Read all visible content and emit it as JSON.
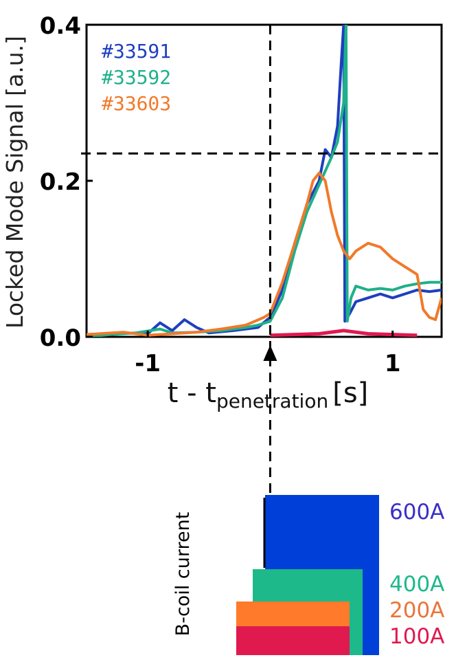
{
  "chart_data": [
    {
      "type": "line",
      "title": "",
      "ylabel": "Locked Mode Signal [a.u.]",
      "xlabel": {
        "main": "t - t",
        "subscript": "penetration",
        "unit": "[s]"
      },
      "xlim": [
        -1.5,
        1.4
      ],
      "ylim": [
        0,
        0.4
      ],
      "xticks": [
        -1,
        1
      ],
      "xtick_labels": [
        "-1",
        "1"
      ],
      "yticks": [
        0,
        0.2,
        0.4
      ],
      "ytick_labels": [
        "0.0",
        "0.2",
        "0.4"
      ],
      "grid": false,
      "legend_placement": "top-left",
      "threshold_y": 0.235,
      "penetration_x": 0,
      "series": [
        {
          "name": "#33591",
          "color": "#1f3fbf",
          "points": [
            [
              -1.5,
              0.0
            ],
            [
              -1.2,
              0.005
            ],
            [
              -1.0,
              0.004
            ],
            [
              -0.9,
              0.018
            ],
            [
              -0.8,
              0.008
            ],
            [
              -0.7,
              0.022
            ],
            [
              -0.6,
              0.012
            ],
            [
              -0.5,
              0.005
            ],
            [
              -0.3,
              0.008
            ],
            [
              -0.1,
              0.012
            ],
            [
              0.0,
              0.025
            ],
            [
              0.1,
              0.06
            ],
            [
              0.2,
              0.12
            ],
            [
              0.3,
              0.17
            ],
            [
              0.4,
              0.2
            ],
            [
              0.45,
              0.24
            ],
            [
              0.5,
              0.23
            ],
            [
              0.55,
              0.27
            ],
            [
              0.58,
              0.35
            ],
            [
              0.6,
              0.4
            ],
            [
              0.61,
              0.02
            ],
            [
              0.65,
              0.03
            ],
            [
              0.7,
              0.045
            ],
            [
              0.8,
              0.05
            ],
            [
              0.9,
              0.055
            ],
            [
              1.0,
              0.05
            ],
            [
              1.1,
              0.055
            ],
            [
              1.2,
              0.06
            ],
            [
              1.3,
              0.058
            ],
            [
              1.4,
              0.06
            ]
          ]
        },
        {
          "name": "#33592",
          "color": "#1fb08a",
          "points": [
            [
              -1.5,
              0.0
            ],
            [
              -1.3,
              0.003
            ],
            [
              -1.1,
              0.005
            ],
            [
              -0.9,
              0.01
            ],
            [
              -0.8,
              0.005
            ],
            [
              -0.6,
              0.006
            ],
            [
              -0.4,
              0.008
            ],
            [
              -0.2,
              0.012
            ],
            [
              -0.1,
              0.015
            ],
            [
              0.0,
              0.02
            ],
            [
              0.1,
              0.05
            ],
            [
              0.2,
              0.11
            ],
            [
              0.3,
              0.16
            ],
            [
              0.4,
              0.195
            ],
            [
              0.5,
              0.23
            ],
            [
              0.55,
              0.25
            ],
            [
              0.6,
              0.3
            ],
            [
              0.62,
              0.4
            ],
            [
              0.63,
              0.02
            ],
            [
              0.66,
              0.05
            ],
            [
              0.7,
              0.065
            ],
            [
              0.8,
              0.06
            ],
            [
              0.9,
              0.062
            ],
            [
              1.0,
              0.06
            ],
            [
              1.1,
              0.065
            ],
            [
              1.2,
              0.068
            ],
            [
              1.3,
              0.07
            ],
            [
              1.4,
              0.07
            ]
          ]
        },
        {
          "name": "#33603",
          "color": "#f07a2a",
          "points": [
            [
              -1.5,
              0.003
            ],
            [
              -1.2,
              0.006
            ],
            [
              -1.0,
              0.002
            ],
            [
              -0.8,
              0.004
            ],
            [
              -0.6,
              0.006
            ],
            [
              -0.4,
              0.01
            ],
            [
              -0.2,
              0.015
            ],
            [
              -0.05,
              0.025
            ],
            [
              0.0,
              0.03
            ],
            [
              0.1,
              0.07
            ],
            [
              0.2,
              0.12
            ],
            [
              0.3,
              0.17
            ],
            [
              0.35,
              0.2
            ],
            [
              0.4,
              0.21
            ],
            [
              0.45,
              0.2
            ],
            [
              0.5,
              0.16
            ],
            [
              0.55,
              0.13
            ],
            [
              0.6,
              0.11
            ],
            [
              0.65,
              0.1
            ],
            [
              0.7,
              0.11
            ],
            [
              0.8,
              0.12
            ],
            [
              0.9,
              0.115
            ],
            [
              1.0,
              0.1
            ],
            [
              1.1,
              0.09
            ],
            [
              1.2,
              0.08
            ],
            [
              1.25,
              0.035
            ],
            [
              1.3,
              0.025
            ],
            [
              1.35,
              0.022
            ],
            [
              1.4,
              0.05
            ]
          ]
        },
        {
          "name": "",
          "color": "#e0194f",
          "points": [
            [
              0.0,
              0.002
            ],
            [
              0.2,
              0.003
            ],
            [
              0.4,
              0.004
            ],
            [
              0.6,
              0.008
            ],
            [
              0.8,
              0.004
            ],
            [
              1.0,
              0.003
            ],
            [
              1.2,
              0.002
            ]
          ]
        }
      ]
    },
    {
      "type": "bar",
      "title": "",
      "ylabel": "B-coil current",
      "series": [
        {
          "name": "600A",
          "color": "#0040d8"
        },
        {
          "name": "400A",
          "color": "#1db98a"
        },
        {
          "name": "200A",
          "color": "#ff7a2a"
        },
        {
          "name": "100A",
          "color": "#e0194f"
        }
      ]
    }
  ]
}
